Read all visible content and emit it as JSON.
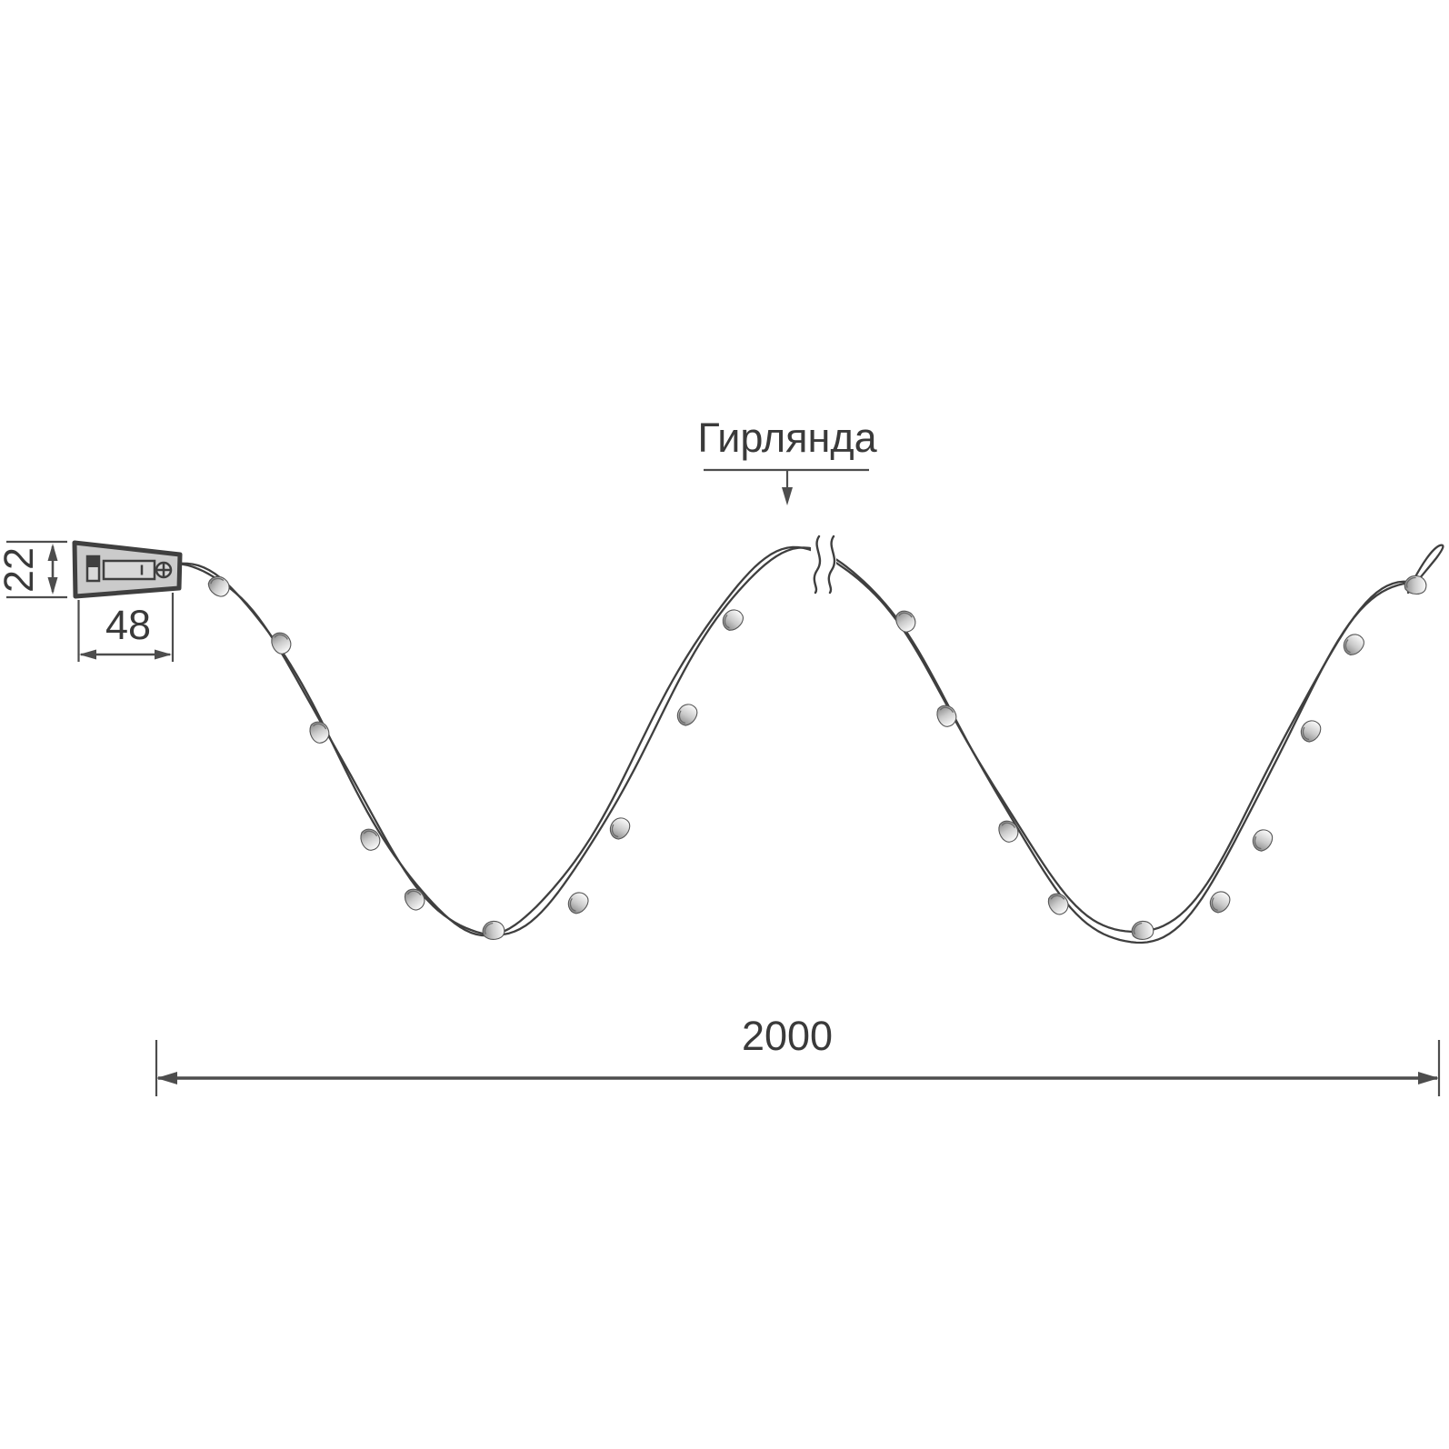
{
  "label": {
    "text": "Гирлянда"
  },
  "dimensions": {
    "connector_height": "22",
    "connector_width": "48",
    "garland_length": "2000"
  },
  "garland": {
    "bulb_count": 20,
    "has_break_symbol": true,
    "wire_style": "double-twisted"
  },
  "icons": {
    "screw_icon": "circle-with-cross",
    "switch_icon": "slide-switch",
    "battery_slot_icon": "battery-compartment"
  },
  "colors": {
    "wire": "#3f3f3f",
    "dimension_line": "#4d4d4d",
    "text": "#3a3a3a",
    "connector_fill": "#cbcbcb",
    "connector_detail_fill": "#d8d8d8",
    "background": "#ffffff"
  }
}
